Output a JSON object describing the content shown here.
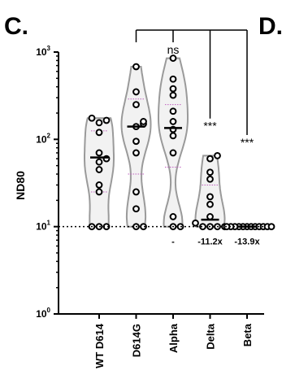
{
  "chart_data": {
    "type": "violin",
    "panel_label": "C.",
    "next_panel_label": "D.",
    "ylabel": "ND80",
    "yscale": "log",
    "ylim": [
      1,
      1000
    ],
    "yticks": [
      {
        "base": "10",
        "exp": "0",
        "value": 1
      },
      {
        "base": "10",
        "exp": "1",
        "value": 10
      },
      {
        "base": "10",
        "exp": "2",
        "value": 100
      },
      {
        "base": "10",
        "exp": "3",
        "value": 1000
      }
    ],
    "threshold": 10,
    "categories": [
      "WT D614",
      "D614G",
      "Alpha",
      "Delta",
      "Beta"
    ],
    "medians": [
      62,
      140,
      135,
      12,
      10
    ],
    "quartiles": [
      [
        25,
        125
      ],
      [
        40,
        290
      ],
      [
        48,
        250
      ],
      [
        10,
        30
      ],
      [
        10,
        10
      ]
    ],
    "points": [
      [
        10,
        10,
        10,
        25,
        30,
        45,
        55,
        60,
        70,
        120,
        155,
        165,
        175
      ],
      [
        10,
        10,
        16,
        25,
        70,
        95,
        140,
        150,
        160,
        250,
        350,
        680
      ],
      [
        10,
        10,
        13,
        70,
        110,
        130,
        160,
        210,
        320,
        380,
        490,
        850
      ],
      [
        10,
        10,
        10,
        10,
        11,
        13,
        18,
        22,
        35,
        42,
        60,
        65
      ],
      [
        10,
        10,
        10,
        10,
        10,
        10,
        10,
        10,
        10,
        10,
        10,
        10
      ]
    ],
    "significance": [
      {
        "from": "D614G",
        "to": "Alpha",
        "label": "ns"
      },
      {
        "from": "D614G",
        "to": "Delta",
        "label": "***"
      },
      {
        "from": "D614G",
        "to": "Beta",
        "label": "***"
      }
    ],
    "fold_changes": [
      "",
      "",
      "-",
      "-11.2x",
      "-13.9x"
    ]
  }
}
